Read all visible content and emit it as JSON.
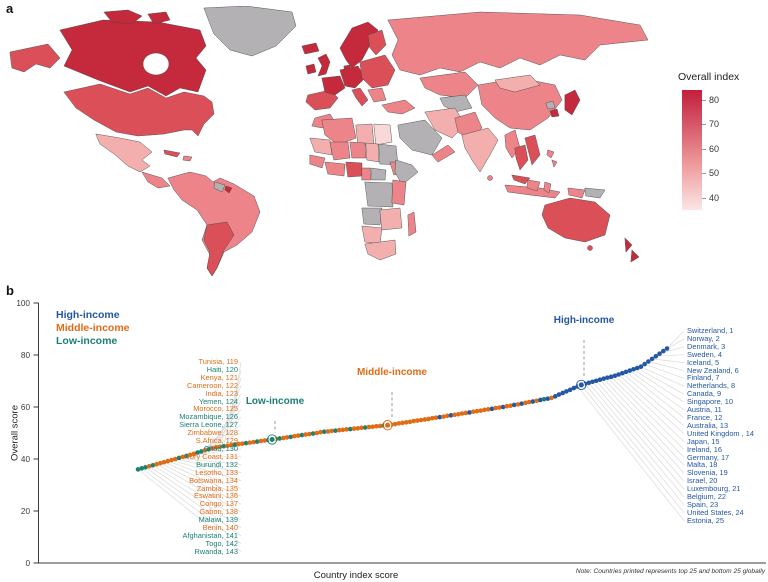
{
  "panel_a": {
    "label": "a",
    "colorbar": {
      "title": "Overall index",
      "ticks": [
        80,
        70,
        60,
        50,
        40
      ],
      "vmax": 84,
      "vmin": 35,
      "gradient_top": "#C21E3C",
      "gradient_mid": "#EE9A9B",
      "gradient_bottom": "#FBE6E5"
    },
    "map_palette": {
      "s1": "#C4293C",
      "s2": "#DB4F59",
      "s3": "#EC8489",
      "s4": "#F3AFAD",
      "s5": "#F9D9D7",
      "nodata": "#B3B1B3",
      "stroke": "#4A4A4A",
      "ocean": "#FFFFFF"
    }
  },
  "panel_b": {
    "label": "b",
    "ylabel": "Overall score",
    "xlabel": "Country index score",
    "note": "Note: Countries printed represents top 25 and bottom 25 globally",
    "yticks": [
      0,
      20,
      40,
      60,
      80,
      100
    ],
    "ylim": [
      0,
      100
    ]
  },
  "chart_data": {
    "type": "scatter",
    "xlabel": "Country index score",
    "ylabel": "Overall score",
    "ylim": [
      0,
      100
    ],
    "legend": [
      {
        "label": "High-income",
        "key": "H"
      },
      {
        "label": "Middle-income",
        "key": "M"
      },
      {
        "label": "Low-income",
        "key": "L"
      }
    ],
    "colors": {
      "H": "#2457A4",
      "M": "#E06C16",
      "L": "#1C8073"
    },
    "fan_line_color": "#DADADA",
    "scores": [
      36.0,
      36.4,
      36.8,
      37.2,
      37.6,
      38.0,
      38.4,
      38.8,
      39.2,
      39.6,
      40.0,
      40.4,
      40.8,
      41.2,
      41.6,
      42.0,
      42.5,
      42.9,
      43.3,
      43.7,
      44.1,
      44.5,
      44.7,
      44.9,
      45.1,
      45.3,
      45.5,
      45.7,
      45.9,
      46.1,
      46.3,
      46.5,
      46.7,
      46.9,
      47.1,
      47.3,
      47.5,
      47.7,
      47.9,
      48.1,
      48.3,
      48.5,
      48.8,
      49.0,
      49.2,
      49.4,
      49.6,
      49.8,
      50.0,
      50.3,
      50.5,
      50.6,
      50.8,
      50.9,
      51.1,
      51.2,
      51.4,
      51.5,
      51.7,
      51.8,
      52.0,
      52.1,
      52.3,
      52.4,
      52.6,
      52.7,
      52.9,
      53.0,
      53.2,
      53.4,
      53.7,
      53.9,
      54.1,
      54.3,
      54.6,
      54.8,
      55.0,
      55.2,
      55.4,
      55.7,
      55.9,
      56.1,
      56.3,
      56.6,
      56.8,
      57.0,
      57.2,
      57.5,
      57.7,
      57.9,
      58.2,
      58.4,
      58.6,
      58.9,
      59.1,
      59.3,
      59.6,
      59.8,
      60.0,
      60.3,
      60.5,
      60.8,
      61.0,
      61.3,
      61.6,
      61.9,
      62.1,
      62.4,
      62.7,
      63.0,
      63.2,
      63.5,
      64.1,
      64.8,
      65.4,
      66.0,
      66.6,
      67.3,
      67.9,
      68.5,
      68.9,
      69.3,
      69.7,
      70.1,
      70.5,
      70.9,
      71.3,
      71.6,
      72.0,
      72.5,
      73.0,
      73.5,
      74.0,
      74.5,
      75.0,
      75.5,
      76.5,
      77.5,
      78.5,
      79.5,
      80.5,
      81.5,
      82.5
    ],
    "incomes": "LLLMLMMMMMMLMLMMLLMLMMMLMMLMMLMMLMMLMMLMMLMMLMMLMMLMMLMMMLMMMLMMMMLMMMMMMMMMMMMMMHMMHMMMMHMMMMMHMMHMMHMHMMHMHLHMHHHHHHHHHHHHHHHHHHHHHHHHHHHHHHH",
    "bottom25": [
      {
        "name": "Tunisia",
        "rank": 119,
        "income": "M"
      },
      {
        "name": "Haiti",
        "rank": 120,
        "income": "L"
      },
      {
        "name": "Kenya",
        "rank": 121,
        "income": "M"
      },
      {
        "name": "Cameroon",
        "rank": 122,
        "income": "M"
      },
      {
        "name": "India",
        "rank": 123,
        "income": "M"
      },
      {
        "name": "Yemen",
        "rank": 124,
        "income": "L"
      },
      {
        "name": "Morocco",
        "rank": 125,
        "income": "M"
      },
      {
        "name": "Mozambique",
        "rank": 126,
        "income": "L"
      },
      {
        "name": "Sierra Leone",
        "rank": 127,
        "income": "L"
      },
      {
        "name": "Zimbabwe",
        "rank": 128,
        "income": "M"
      },
      {
        "name": "S.Africa",
        "rank": 129,
        "income": "M"
      },
      {
        "name": "Chad",
        "rank": 130,
        "income": "L"
      },
      {
        "name": "Ivory Coast",
        "rank": 131,
        "income": "M"
      },
      {
        "name": "Burundi",
        "rank": 132,
        "income": "L"
      },
      {
        "name": "Lesotho",
        "rank": 133,
        "income": "M"
      },
      {
        "name": "Botswana",
        "rank": 134,
        "income": "M"
      },
      {
        "name": "Zambia",
        "rank": 135,
        "income": "M"
      },
      {
        "name": "Eswatini",
        "rank": 136,
        "income": "M"
      },
      {
        "name": "Congo",
        "rank": 137,
        "income": "M"
      },
      {
        "name": "Gabon",
        "rank": 138,
        "income": "M"
      },
      {
        "name": "Malawi",
        "rank": 139,
        "income": "L"
      },
      {
        "name": "Benin",
        "rank": 140,
        "income": "M"
      },
      {
        "name": "Afghanistan",
        "rank": 141,
        "income": "L"
      },
      {
        "name": "Togo",
        "rank": 142,
        "income": "L"
      },
      {
        "name": "Rwanda",
        "rank": 143,
        "income": "L"
      }
    ],
    "top25": [
      {
        "name": "Switzerland",
        "rank": 1,
        "income": "H"
      },
      {
        "name": "Norway",
        "rank": 2,
        "income": "H"
      },
      {
        "name": "Denmark",
        "rank": 3,
        "income": "H"
      },
      {
        "name": "Sweden",
        "rank": 4,
        "income": "H"
      },
      {
        "name": "Iceland",
        "rank": 5,
        "income": "H"
      },
      {
        "name": "New Zealand",
        "rank": 6,
        "income": "H"
      },
      {
        "name": "Finland",
        "rank": 7,
        "income": "H"
      },
      {
        "name": "Netherlands",
        "rank": 8,
        "income": "H"
      },
      {
        "name": "Canada",
        "rank": 9,
        "income": "H"
      },
      {
        "name": "Singapore",
        "rank": 10,
        "income": "H"
      },
      {
        "name": "Austria",
        "rank": 11,
        "income": "H"
      },
      {
        "name": "France",
        "rank": 12,
        "income": "H"
      },
      {
        "name": "Australia",
        "rank": 13,
        "income": "H"
      },
      {
        "name": "United Kingdom ",
        "rank": 14,
        "income": "H"
      },
      {
        "name": "Japan",
        "rank": 15,
        "income": "H"
      },
      {
        "name": "Ireland",
        "rank": 16,
        "income": "H"
      },
      {
        "name": "Germany",
        "rank": 17,
        "income": "H"
      },
      {
        "name": "Malta",
        "rank": 18,
        "income": "H"
      },
      {
        "name": "Slovenia",
        "rank": 19,
        "income": "H"
      },
      {
        "name": "Israel",
        "rank": 20,
        "income": "H"
      },
      {
        "name": "Luxembourg",
        "rank": 21,
        "income": "H"
      },
      {
        "name": "Belgium",
        "rank": 22,
        "income": "H"
      },
      {
        "name": "Spain",
        "rank": 23,
        "income": "H"
      },
      {
        "name": "United States",
        "rank": 24,
        "income": "H"
      },
      {
        "name": "Estonia",
        "rank": 25,
        "income": "H"
      }
    ],
    "annotations": [
      {
        "label": "Low-income",
        "income": "L",
        "target_index": 36,
        "label_x": 275,
        "label_y": 402
      },
      {
        "label": "Middle-income",
        "income": "M",
        "target_index": 67,
        "label_x": 392,
        "label_y": 373
      },
      {
        "label": "High-income",
        "income": "H",
        "target_index": 119,
        "label_x": 584,
        "label_y": 321
      }
    ]
  }
}
